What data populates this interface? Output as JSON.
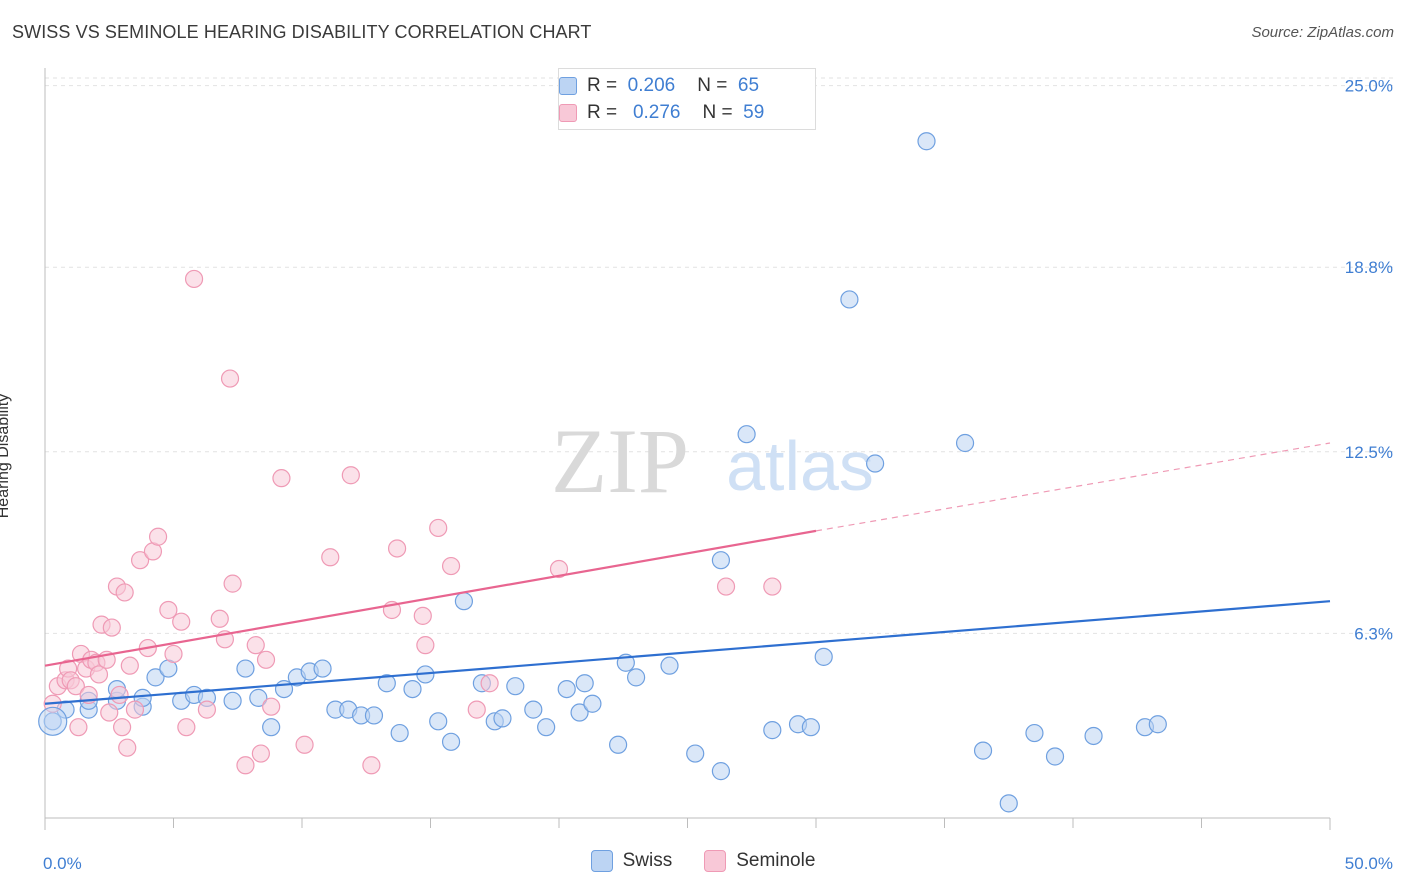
{
  "title": "SWISS VS SEMINOLE HEARING DISABILITY CORRELATION CHART",
  "source": "Source: ZipAtlas.com",
  "watermark": {
    "zip": "ZIP",
    "atlas": "atlas"
  },
  "legend_top": {
    "rows": [
      {
        "r_label": "R =",
        "r_value": "0.206",
        "n_label": "N =",
        "n_value": "65"
      },
      {
        "r_label": "R =",
        "r_value": "0.276",
        "n_label": "N =",
        "n_value": "59"
      }
    ]
  },
  "legend_bottom": [
    {
      "label": "Swiss"
    },
    {
      "label": "Seminole"
    }
  ],
  "chart_data": {
    "type": "scatter",
    "title": "SWISS VS SEMINOLE HEARING DISABILITY CORRELATION CHART",
    "xlabel": "",
    "ylabel": "Hearing Disability",
    "xlim": [
      0,
      50
    ],
    "ylim": [
      0,
      25.6
    ],
    "x_tick_labels": [
      "0.0%",
      "50.0%"
    ],
    "y_ticks": [
      6.3,
      12.5,
      18.8,
      25.0
    ],
    "y_tick_labels": [
      "6.3%",
      "12.5%",
      "18.8%",
      "25.0%"
    ],
    "grid": true,
    "legend_position": "top-center",
    "series": [
      {
        "name": "Swiss",
        "color": "#6fa0e0",
        "fill": "#bcd4f3",
        "line_color": "#2e6fd0",
        "trend": {
          "x": [
            0,
            50
          ],
          "y": [
            3.9,
            7.4
          ]
        },
        "points": [
          [
            0.3,
            3.3
          ],
          [
            0.8,
            3.7
          ],
          [
            1.7,
            3.7
          ],
          [
            1.7,
            4.0
          ],
          [
            2.8,
            4.0
          ],
          [
            2.8,
            4.4
          ],
          [
            3.8,
            3.8
          ],
          [
            3.8,
            4.1
          ],
          [
            4.3,
            4.8
          ],
          [
            4.8,
            5.1
          ],
          [
            5.3,
            4.0
          ],
          [
            5.8,
            4.2
          ],
          [
            6.3,
            4.1
          ],
          [
            7.3,
            4.0
          ],
          [
            7.8,
            5.1
          ],
          [
            8.3,
            4.1
          ],
          [
            8.8,
            3.1
          ],
          [
            9.3,
            4.4
          ],
          [
            9.8,
            4.8
          ],
          [
            10.3,
            5.0
          ],
          [
            10.8,
            5.1
          ],
          [
            11.3,
            3.7
          ],
          [
            11.8,
            3.7
          ],
          [
            12.3,
            3.5
          ],
          [
            12.8,
            3.5
          ],
          [
            13.3,
            4.6
          ],
          [
            13.8,
            2.9
          ],
          [
            14.3,
            4.4
          ],
          [
            14.8,
            4.9
          ],
          [
            15.3,
            3.3
          ],
          [
            15.8,
            2.6
          ],
          [
            16.3,
            7.4
          ],
          [
            17.0,
            4.6
          ],
          [
            17.5,
            3.3
          ],
          [
            17.8,
            3.4
          ],
          [
            18.3,
            4.5
          ],
          [
            19.0,
            3.7
          ],
          [
            19.5,
            3.1
          ],
          [
            20.3,
            4.4
          ],
          [
            20.8,
            3.6
          ],
          [
            21.3,
            3.9
          ],
          [
            22.3,
            2.5
          ],
          [
            22.6,
            5.3
          ],
          [
            23.0,
            4.8
          ],
          [
            24.3,
            5.2
          ],
          [
            25.3,
            2.2
          ],
          [
            26.3,
            1.6
          ],
          [
            27.3,
            13.1
          ],
          [
            28.3,
            3.0
          ],
          [
            29.3,
            3.2
          ],
          [
            30.3,
            5.5
          ],
          [
            31.3,
            17.7
          ],
          [
            32.3,
            12.1
          ],
          [
            34.3,
            23.1
          ],
          [
            35.8,
            12.8
          ],
          [
            36.5,
            2.3
          ],
          [
            37.5,
            0.5
          ],
          [
            38.5,
            2.9
          ],
          [
            39.3,
            2.1
          ],
          [
            40.8,
            2.8
          ],
          [
            42.8,
            3.1
          ],
          [
            43.3,
            3.2
          ],
          [
            26.3,
            8.8
          ],
          [
            21.0,
            4.6
          ],
          [
            29.8,
            3.1
          ]
        ]
      },
      {
        "name": "Seminole",
        "color": "#ef9ab5",
        "fill": "#f8c8d7",
        "line_color": "#e86590",
        "trend": {
          "x": [
            0,
            30
          ],
          "y": [
            5.2,
            9.8
          ]
        },
        "trend_extension": {
          "x": [
            30,
            50
          ],
          "y": [
            9.8,
            12.8
          ]
        },
        "points": [
          [
            0.3,
            3.9
          ],
          [
            0.5,
            4.5
          ],
          [
            0.8,
            4.7
          ],
          [
            0.9,
            5.1
          ],
          [
            1.0,
            4.7
          ],
          [
            1.2,
            4.5
          ],
          [
            1.3,
            3.1
          ],
          [
            1.4,
            5.6
          ],
          [
            1.6,
            5.1
          ],
          [
            1.7,
            4.2
          ],
          [
            1.8,
            5.4
          ],
          [
            2.0,
            5.3
          ],
          [
            2.1,
            4.9
          ],
          [
            2.2,
            6.6
          ],
          [
            2.4,
            5.4
          ],
          [
            2.5,
            3.6
          ],
          [
            2.6,
            6.5
          ],
          [
            2.8,
            7.9
          ],
          [
            2.9,
            4.2
          ],
          [
            3.0,
            3.1
          ],
          [
            3.1,
            7.7
          ],
          [
            3.2,
            2.4
          ],
          [
            3.3,
            5.2
          ],
          [
            3.5,
            3.7
          ],
          [
            3.7,
            8.8
          ],
          [
            4.0,
            5.8
          ],
          [
            4.2,
            9.1
          ],
          [
            4.4,
            9.6
          ],
          [
            4.8,
            7.1
          ],
          [
            5.0,
            5.6
          ],
          [
            5.3,
            6.7
          ],
          [
            5.5,
            3.1
          ],
          [
            5.8,
            18.4
          ],
          [
            6.3,
            3.7
          ],
          [
            6.8,
            6.8
          ],
          [
            7.0,
            6.1
          ],
          [
            7.2,
            15.0
          ],
          [
            7.3,
            8.0
          ],
          [
            7.8,
            1.8
          ],
          [
            8.2,
            5.9
          ],
          [
            8.4,
            2.2
          ],
          [
            8.6,
            5.4
          ],
          [
            8.8,
            3.8
          ],
          [
            9.2,
            11.6
          ],
          [
            10.1,
            2.5
          ],
          [
            11.1,
            8.9
          ],
          [
            11.9,
            11.7
          ],
          [
            12.7,
            1.8
          ],
          [
            13.5,
            7.1
          ],
          [
            13.7,
            9.2
          ],
          [
            14.7,
            6.9
          ],
          [
            14.8,
            5.9
          ],
          [
            15.3,
            9.9
          ],
          [
            15.8,
            8.6
          ],
          [
            16.8,
            3.7
          ],
          [
            17.3,
            4.6
          ],
          [
            20.0,
            8.5
          ],
          [
            26.5,
            7.9
          ],
          [
            28.3,
            7.9
          ]
        ]
      }
    ]
  }
}
